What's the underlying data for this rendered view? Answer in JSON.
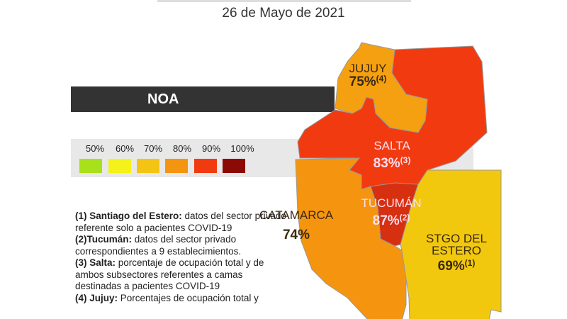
{
  "date": "26 de Mayo de 2021",
  "region_title": "NOA",
  "legend": [
    {
      "label": "50%",
      "color": "#a8e01c"
    },
    {
      "label": "60%",
      "color": "#f4f21a"
    },
    {
      "label": "70%",
      "color": "#f4c414"
    },
    {
      "label": "80%",
      "color": "#f49512"
    },
    {
      "label": "90%",
      "color": "#f23a10"
    },
    {
      "label": "100%",
      "color": "#8c0a06"
    }
  ],
  "provinces": [
    {
      "name": "JUJUY",
      "value": "75%",
      "note": "(4)",
      "color": "#f5a010"
    },
    {
      "name": "SALTA",
      "value": "83%",
      "note": "(3)",
      "color": "#f23a10"
    },
    {
      "name": "CATAMARCA",
      "value": "74%",
      "note": "",
      "color": "#f5950f"
    },
    {
      "name": "TUCUMÁN",
      "value": "87%",
      "note": "(2)",
      "color": "#d63010"
    },
    {
      "name": "STGO DEL",
      "name2": "ESTERO",
      "value": "69%",
      "note": "(1)",
      "color": "#f2c80e"
    }
  ],
  "notes": [
    {
      "head": "(1) Santiago del Estero:",
      "text": " datos del sector privado referente solo a pacientes COVID-19"
    },
    {
      "head": "(2)Tucumán:",
      "text": " datos del sector privado correspondientes a 9 establecimientos."
    },
    {
      "head": "(3) Salta:",
      "text": " porcentaje de ocupación total y de ambos subsectores referentes a camas destinadas a pacientes COVID-19"
    },
    {
      "head": "(4) Jujuy:",
      "text": " Porcentajes de ocupación total y"
    }
  ]
}
